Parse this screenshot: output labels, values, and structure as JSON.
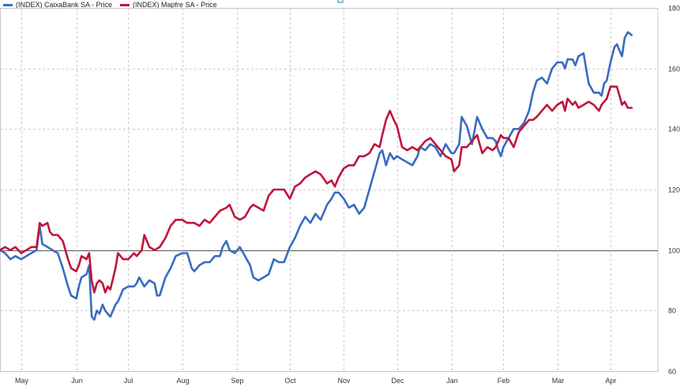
{
  "chart_data": {
    "type": "line",
    "title": "",
    "xlabel": "",
    "ylabel": "",
    "ylim": [
      60,
      180
    ],
    "y_ticks": [
      60,
      80,
      100,
      120,
      140,
      160,
      180
    ],
    "reference_line": 100,
    "grid": true,
    "legend_position": "top-left",
    "x_range": [
      0,
      100
    ],
    "months": [
      {
        "label": "May",
        "x": 3.3
      },
      {
        "label": "Jun",
        "x": 11.9
      },
      {
        "label": "Jul",
        "x": 20.0
      },
      {
        "label": "Aug",
        "x": 28.4
      },
      {
        "label": "Sep",
        "x": 36.9
      },
      {
        "label": "Oct",
        "x": 45.2
      },
      {
        "label": "Nov",
        "x": 53.6
      },
      {
        "label": "Dec",
        "x": 61.9
      },
      {
        "label": "Jan",
        "x": 70.4
      },
      {
        "label": "Feb",
        "x": 78.5
      },
      {
        "label": "Mar",
        "x": 86.9
      },
      {
        "label": "Apr",
        "x": 95.2
      }
    ],
    "series": [
      {
        "name": "(INDEX) CaixaBank  SA - Price",
        "color": "#3a6bbf",
        "points": [
          [
            0,
            100
          ],
          [
            0.8,
            99
          ],
          [
            1.6,
            97
          ],
          [
            2.4,
            98
          ],
          [
            3.3,
            97
          ],
          [
            4.1,
            98
          ],
          [
            4.9,
            99
          ],
          [
            5.7,
            100
          ],
          [
            6.2,
            108
          ],
          [
            6.6,
            102
          ],
          [
            7.4,
            101
          ],
          [
            8.2,
            100
          ],
          [
            9.0,
            99
          ],
          [
            9.8,
            94
          ],
          [
            10.6,
            88
          ],
          [
            11.1,
            85
          ],
          [
            11.9,
            84
          ],
          [
            12.3,
            88
          ],
          [
            12.7,
            91
          ],
          [
            13.5,
            92
          ],
          [
            13.9,
            95
          ],
          [
            14.3,
            78
          ],
          [
            14.7,
            77
          ],
          [
            15.1,
            80
          ],
          [
            15.5,
            79
          ],
          [
            16.0,
            82
          ],
          [
            16.4,
            80
          ],
          [
            16.8,
            79
          ],
          [
            17.2,
            78
          ],
          [
            18.0,
            82
          ],
          [
            18.4,
            83
          ],
          [
            19.2,
            87
          ],
          [
            20.0,
            88
          ],
          [
            20.9,
            88
          ],
          [
            21.3,
            89
          ],
          [
            21.7,
            91
          ],
          [
            22.5,
            88
          ],
          [
            23.3,
            90
          ],
          [
            24.1,
            89
          ],
          [
            24.5,
            85
          ],
          [
            24.9,
            85
          ],
          [
            25.8,
            91
          ],
          [
            26.6,
            94
          ],
          [
            27.4,
            98
          ],
          [
            28.4,
            99
          ],
          [
            29.2,
            99
          ],
          [
            29.9,
            94
          ],
          [
            30.3,
            93
          ],
          [
            31.1,
            95
          ],
          [
            31.9,
            96
          ],
          [
            32.7,
            96
          ],
          [
            33.5,
            98
          ],
          [
            34.3,
            98
          ],
          [
            34.7,
            101
          ],
          [
            35.3,
            103
          ],
          [
            35.8,
            100
          ],
          [
            36.6,
            99
          ],
          [
            37.4,
            101
          ],
          [
            38.2,
            98
          ],
          [
            39.0,
            95
          ],
          [
            39.5,
            91
          ],
          [
            40.3,
            90
          ],
          [
            41.1,
            91
          ],
          [
            41.9,
            92
          ],
          [
            42.7,
            97
          ],
          [
            43.5,
            96
          ],
          [
            44.3,
            96
          ],
          [
            45.2,
            101
          ],
          [
            46.0,
            104
          ],
          [
            46.8,
            108
          ],
          [
            47.6,
            111
          ],
          [
            48.4,
            109
          ],
          [
            49.2,
            112
          ],
          [
            50.0,
            110
          ],
          [
            51.0,
            115
          ],
          [
            51.7,
            117
          ],
          [
            52.2,
            119
          ],
          [
            52.8,
            119
          ],
          [
            53.6,
            117
          ],
          [
            54.4,
            114
          ],
          [
            55.2,
            115
          ],
          [
            56.0,
            112
          ],
          [
            56.8,
            114
          ],
          [
            57.6,
            120
          ],
          [
            58.4,
            126
          ],
          [
            59.2,
            132
          ],
          [
            59.6,
            133
          ],
          [
            60.2,
            128
          ],
          [
            60.8,
            132
          ],
          [
            61.4,
            130
          ],
          [
            61.9,
            131
          ],
          [
            62.7,
            130
          ],
          [
            63.5,
            129
          ],
          [
            64.3,
            128
          ],
          [
            65.1,
            131
          ],
          [
            65.5,
            134
          ],
          [
            66.3,
            133
          ],
          [
            67.1,
            135
          ],
          [
            67.9,
            134
          ],
          [
            68.7,
            131
          ],
          [
            69.5,
            135
          ],
          [
            70.4,
            132
          ],
          [
            70.8,
            132
          ],
          [
            71.6,
            135
          ],
          [
            72.0,
            144
          ],
          [
            72.8,
            141
          ],
          [
            73.6,
            135
          ],
          [
            74.4,
            144
          ],
          [
            75.2,
            140
          ],
          [
            76.0,
            137
          ],
          [
            76.8,
            137
          ],
          [
            77.3,
            136
          ],
          [
            77.7,
            133
          ],
          [
            78.1,
            131
          ],
          [
            78.5,
            134
          ],
          [
            79.3,
            137
          ],
          [
            80.1,
            140
          ],
          [
            80.9,
            140
          ],
          [
            81.7,
            142
          ],
          [
            82.5,
            146
          ],
          [
            83.1,
            152
          ],
          [
            83.7,
            156
          ],
          [
            84.5,
            157
          ],
          [
            85.3,
            155
          ],
          [
            86.1,
            160
          ],
          [
            86.9,
            162
          ],
          [
            87.7,
            162
          ],
          [
            88.1,
            160
          ],
          [
            88.5,
            163
          ],
          [
            89.3,
            163
          ],
          [
            89.7,
            161
          ],
          [
            90.2,
            164
          ],
          [
            91.0,
            165
          ],
          [
            91.8,
            155
          ],
          [
            92.6,
            152
          ],
          [
            93.4,
            152
          ],
          [
            93.8,
            151
          ],
          [
            94.2,
            155
          ],
          [
            94.6,
            156
          ],
          [
            95.2,
            162
          ],
          [
            95.8,
            167
          ],
          [
            96.2,
            168
          ],
          [
            96.6,
            166
          ],
          [
            97.0,
            164
          ],
          [
            97.4,
            170
          ],
          [
            97.9,
            172
          ],
          [
            98.5,
            171
          ]
        ]
      },
      {
        "name": "(INDEX) Mapfre  SA - Price",
        "color": "#c0143c",
        "points": [
          [
            0,
            100
          ],
          [
            0.8,
            101
          ],
          [
            1.6,
            100
          ],
          [
            2.4,
            101
          ],
          [
            3.3,
            99
          ],
          [
            4.1,
            100
          ],
          [
            4.9,
            101
          ],
          [
            5.7,
            101
          ],
          [
            6.2,
            109
          ],
          [
            6.6,
            108
          ],
          [
            7.4,
            109
          ],
          [
            7.8,
            106
          ],
          [
            8.2,
            105
          ],
          [
            9.0,
            105
          ],
          [
            9.8,
            103
          ],
          [
            10.6,
            97
          ],
          [
            11.1,
            94
          ],
          [
            11.9,
            93
          ],
          [
            12.3,
            95
          ],
          [
            12.7,
            98
          ],
          [
            13.5,
            97
          ],
          [
            13.9,
            99
          ],
          [
            14.3,
            90
          ],
          [
            14.7,
            86
          ],
          [
            15.1,
            89
          ],
          [
            15.5,
            90
          ],
          [
            16.0,
            89
          ],
          [
            16.4,
            86
          ],
          [
            16.8,
            88
          ],
          [
            17.2,
            87
          ],
          [
            18.0,
            94
          ],
          [
            18.4,
            99
          ],
          [
            19.2,
            97
          ],
          [
            20.0,
            97
          ],
          [
            20.9,
            99
          ],
          [
            21.3,
            98
          ],
          [
            21.7,
            99
          ],
          [
            22.1,
            100
          ],
          [
            22.5,
            105
          ],
          [
            23.3,
            101
          ],
          [
            24.1,
            100
          ],
          [
            24.9,
            101
          ],
          [
            25.8,
            104
          ],
          [
            26.6,
            108
          ],
          [
            27.4,
            110
          ],
          [
            28.4,
            110
          ],
          [
            29.2,
            109
          ],
          [
            29.9,
            109
          ],
          [
            30.3,
            109
          ],
          [
            31.1,
            108
          ],
          [
            31.9,
            110
          ],
          [
            32.7,
            109
          ],
          [
            33.5,
            111
          ],
          [
            34.3,
            113
          ],
          [
            35.3,
            114
          ],
          [
            35.8,
            115
          ],
          [
            36.6,
            111
          ],
          [
            37.4,
            110
          ],
          [
            38.2,
            111
          ],
          [
            39.0,
            114
          ],
          [
            39.5,
            115
          ],
          [
            40.3,
            114
          ],
          [
            41.1,
            113
          ],
          [
            41.9,
            118
          ],
          [
            42.7,
            120
          ],
          [
            43.5,
            120
          ],
          [
            44.3,
            120
          ],
          [
            45.2,
            117
          ],
          [
            46.0,
            121
          ],
          [
            46.8,
            122
          ],
          [
            47.6,
            124
          ],
          [
            48.4,
            125
          ],
          [
            49.2,
            126
          ],
          [
            50.0,
            125
          ],
          [
            51.0,
            122
          ],
          [
            51.7,
            123
          ],
          [
            52.2,
            121
          ],
          [
            52.8,
            124
          ],
          [
            53.6,
            127
          ],
          [
            54.4,
            128
          ],
          [
            55.2,
            128
          ],
          [
            56.0,
            131
          ],
          [
            56.8,
            131
          ],
          [
            57.6,
            132
          ],
          [
            58.4,
            135
          ],
          [
            59.2,
            134
          ],
          [
            59.6,
            138
          ],
          [
            60.2,
            143
          ],
          [
            60.8,
            146
          ],
          [
            61.4,
            143
          ],
          [
            61.9,
            141
          ],
          [
            62.7,
            134
          ],
          [
            63.5,
            133
          ],
          [
            64.3,
            134
          ],
          [
            65.1,
            133
          ],
          [
            65.5,
            134
          ],
          [
            66.3,
            136
          ],
          [
            67.1,
            137
          ],
          [
            67.9,
            135
          ],
          [
            68.7,
            133
          ],
          [
            69.5,
            131
          ],
          [
            70.4,
            130
          ],
          [
            70.8,
            126
          ],
          [
            71.6,
            128
          ],
          [
            72.0,
            134
          ],
          [
            72.8,
            134
          ],
          [
            73.6,
            136
          ],
          [
            74.4,
            138
          ],
          [
            75.2,
            132
          ],
          [
            76.0,
            134
          ],
          [
            76.8,
            133
          ],
          [
            77.3,
            134
          ],
          [
            77.7,
            136
          ],
          [
            78.1,
            138
          ],
          [
            78.5,
            137
          ],
          [
            79.3,
            137
          ],
          [
            80.1,
            134
          ],
          [
            80.9,
            139
          ],
          [
            81.7,
            141
          ],
          [
            82.5,
            143
          ],
          [
            83.1,
            143
          ],
          [
            83.7,
            144
          ],
          [
            84.5,
            146
          ],
          [
            85.3,
            148
          ],
          [
            86.1,
            146
          ],
          [
            86.9,
            148
          ],
          [
            87.7,
            149
          ],
          [
            88.1,
            146
          ],
          [
            88.5,
            150
          ],
          [
            89.3,
            148
          ],
          [
            89.7,
            149
          ],
          [
            90.2,
            147
          ],
          [
            91.0,
            148
          ],
          [
            91.8,
            149
          ],
          [
            92.6,
            148
          ],
          [
            93.4,
            146
          ],
          [
            93.8,
            148
          ],
          [
            94.2,
            149
          ],
          [
            94.6,
            150
          ],
          [
            95.2,
            154
          ],
          [
            95.8,
            154
          ],
          [
            96.2,
            154
          ],
          [
            96.6,
            151
          ],
          [
            97.0,
            148
          ],
          [
            97.4,
            149
          ],
          [
            97.9,
            147
          ],
          [
            98.5,
            147
          ]
        ]
      }
    ]
  }
}
